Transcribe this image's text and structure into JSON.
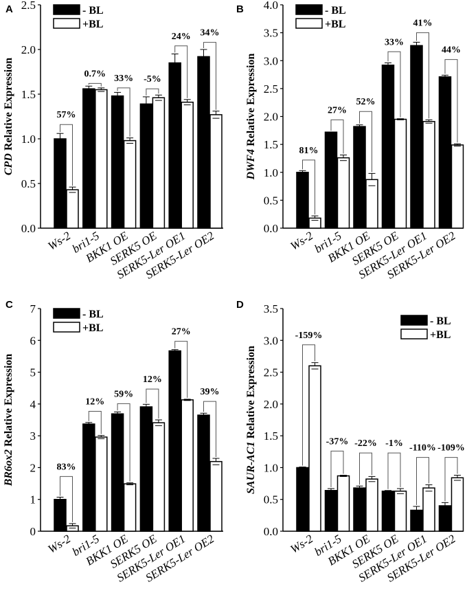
{
  "chart_data": [
    {
      "panel": "A",
      "type": "bar",
      "ylabel_gene": "CPD",
      "ylabel_rest": " Relative Expression",
      "ylim": [
        0,
        2.5
      ],
      "yticks": [
        "0.0",
        "0.5",
        "1.0",
        "1.5",
        "2.0",
        "2.5"
      ],
      "ystep": 0.5,
      "legend": "top-left",
      "categories": [
        "Ws-2",
        "bri1-5",
        "BKK1 OE",
        "SERK5 OE",
        "SERK5-Ler OE1",
        "SERK5-Ler OE2"
      ],
      "series": [
        {
          "name": "- BL",
          "color": "#000000",
          "values": [
            1.0,
            1.56,
            1.48,
            1.39,
            1.85,
            1.92
          ],
          "errors": [
            0.06,
            0.03,
            0.04,
            0.08,
            0.1,
            0.08
          ]
        },
        {
          "name": "+BL",
          "color": "#ffffff",
          "values": [
            0.43,
            1.55,
            0.98,
            1.46,
            1.41,
            1.27
          ],
          "errors": [
            0.03,
            0.02,
            0.03,
            0.03,
            0.03,
            0.04
          ]
        }
      ],
      "annotations": [
        "57%",
        "0.7%",
        "33%",
        "-5%",
        "24%",
        "34%"
      ],
      "bracket_levels": [
        1.16,
        1.62,
        1.57,
        1.56,
        2.04,
        2.08
      ]
    },
    {
      "panel": "B",
      "type": "bar",
      "ylabel_gene": "DWF4",
      "ylabel_rest": " Relative Expression",
      "ylim": [
        0,
        4.0
      ],
      "yticks": [
        "0.0",
        "0.5",
        "1.0",
        "1.5",
        "2.0",
        "2.5",
        "3.0",
        "3.5",
        "4.0"
      ],
      "ystep": 0.5,
      "legend": "top-left",
      "categories": [
        "Ws-2",
        "bri1-5",
        "BKK1 OE",
        "SERK5 OE",
        "SERK5-Ler OE1",
        "SERK5-Ler OE2"
      ],
      "series": [
        {
          "name": "- BL",
          "color": "#000000",
          "values": [
            1.0,
            1.72,
            1.82,
            2.92,
            3.27,
            2.71
          ],
          "errors": [
            0.03,
            0.0,
            0.03,
            0.04,
            0.06,
            0.03
          ]
        },
        {
          "name": "+BL",
          "color": "#ffffff",
          "values": [
            0.18,
            1.26,
            0.87,
            1.95,
            1.91,
            1.49
          ],
          "errors": [
            0.04,
            0.05,
            0.11,
            0.01,
            0.03,
            0.02
          ]
        }
      ],
      "annotations": [
        "81%",
        "27%",
        "52%",
        "33%",
        "41%",
        "44%"
      ],
      "bracket_levels": [
        1.22,
        1.94,
        2.09,
        3.16,
        3.5,
        3.02
      ]
    },
    {
      "panel": "C",
      "type": "bar",
      "ylabel_gene": "BR6ox2",
      "ylabel_rest": " Relative Expression",
      "ylim": [
        0,
        7
      ],
      "yticks": [
        "0",
        "1",
        "2",
        "3",
        "4",
        "5",
        "6",
        "7"
      ],
      "ystep": 1,
      "legend": "top-left",
      "categories": [
        "Ws-2",
        "bri1-5",
        "BKK1 OE",
        "SERK5 OE",
        "SERK5-Ler OE1",
        "SERK5-Ler OE2"
      ],
      "series": [
        {
          "name": "- BL",
          "color": "#000000",
          "values": [
            1.0,
            3.37,
            3.69,
            3.91,
            5.67,
            3.65
          ],
          "errors": [
            0.07,
            0.05,
            0.06,
            0.08,
            0.04,
            0.06
          ]
        },
        {
          "name": "+BL",
          "color": "#ffffff",
          "values": [
            0.17,
            2.96,
            1.49,
            3.41,
            4.13,
            2.19
          ],
          "errors": [
            0.07,
            0.05,
            0.03,
            0.09,
            0.02,
            0.1
          ]
        }
      ],
      "annotations": [
        "83%",
        "12%",
        "59%",
        "12%",
        "27%",
        "39%"
      ],
      "bracket_levels": [
        1.72,
        3.77,
        4.01,
        4.47,
        5.97,
        4.08
      ]
    },
    {
      "panel": "D",
      "type": "bar",
      "ylabel_gene": "SAUR-AC1",
      "ylabel_rest": " Relative Expression",
      "ylim": [
        0,
        3.5
      ],
      "yticks": [
        "0.0",
        "0.5",
        "1.0",
        "1.5",
        "2.0",
        "2.5",
        "3.0",
        "3.5"
      ],
      "ystep": 0.5,
      "legend": "top-right",
      "categories": [
        "Ws-2",
        "bri1-5",
        "BKK1 OE",
        "SERK5 OE",
        "SERK5-Ler OE1",
        "SERK5-Ler OE2"
      ],
      "series": [
        {
          "name": "- BL",
          "color": "#000000",
          "values": [
            1.0,
            0.64,
            0.68,
            0.63,
            0.33,
            0.4
          ],
          "errors": [
            0.01,
            0.03,
            0.03,
            0.01,
            0.06,
            0.05
          ]
        },
        {
          "name": "+BL",
          "color": "#ffffff",
          "values": [
            2.6,
            0.87,
            0.82,
            0.63,
            0.68,
            0.84
          ],
          "errors": [
            0.05,
            0.01,
            0.04,
            0.04,
            0.05,
            0.04
          ]
        }
      ],
      "annotations": [
        "-159%",
        "-37%",
        "-22%",
        "-1%",
        "-110%",
        "-109%"
      ],
      "bracket_levels": [
        2.93,
        1.26,
        1.23,
        1.23,
        1.16,
        1.16
      ]
    }
  ]
}
